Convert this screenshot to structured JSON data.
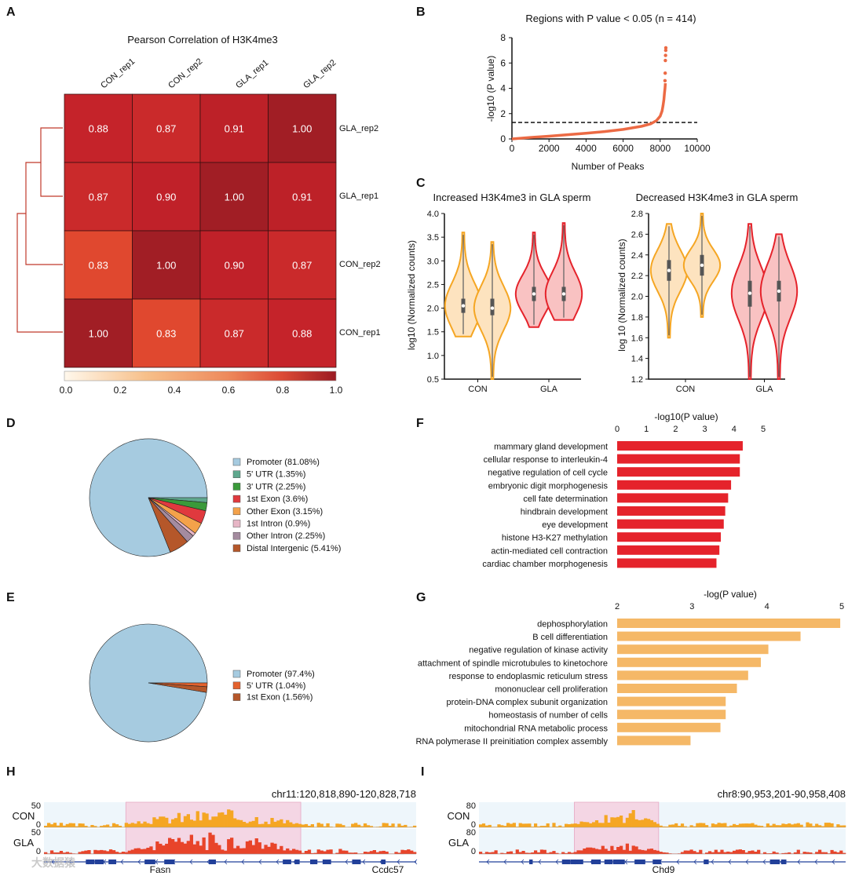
{
  "panel_labels": {
    "a": "A",
    "b": "B",
    "c": "C",
    "d": "D",
    "e": "E",
    "f": "F",
    "g": "G",
    "h": "H",
    "i": "I"
  },
  "watermark": "大数据猿",
  "chart_data": [
    {
      "id": "A",
      "type": "heatmap",
      "title": "Pearson Correlation of H3K4me3",
      "columns": [
        "CON_rep1",
        "CON_rep2",
        "GLA_rep1",
        "GLA_rep2"
      ],
      "rows": [
        "GLA_rep2",
        "GLA_rep1",
        "CON_rep2",
        "CON_rep1"
      ],
      "values": [
        [
          0.88,
          0.87,
          0.91,
          1.0
        ],
        [
          0.87,
          0.9,
          1.0,
          0.91
        ],
        [
          0.83,
          1.0,
          0.9,
          0.87
        ],
        [
          1.0,
          0.83,
          0.87,
          0.88
        ]
      ],
      "value_labels": [
        [
          "0.88",
          "0.87",
          "0.91",
          "1.00"
        ],
        [
          "0.87",
          "0.90",
          "1.00",
          "0.91"
        ],
        [
          "0.83",
          "1.00",
          "0.90",
          "0.87"
        ],
        [
          "1.00",
          "0.83",
          "0.87",
          "0.88"
        ]
      ],
      "colorbar_ticks": [
        "0.0",
        "0.2",
        "0.4",
        "0.6",
        "0.8",
        "1.0"
      ],
      "colorbar_range": [
        0,
        1
      ],
      "colors": [
        "#fff8ec",
        "#f6b77d",
        "#ec7a52",
        "#d9352a",
        "#9b1a22"
      ],
      "dendrogram": "left"
    },
    {
      "id": "B",
      "type": "line",
      "title": "Regions with P value < 0.05  (n = 414)",
      "xlabel": "Number of Peaks",
      "ylabel": "-log10 (P value)",
      "xlim": [
        0,
        10000
      ],
      "ylim": [
        0,
        8
      ],
      "xticks": [
        "0",
        "2000",
        "4000",
        "6000",
        "8000",
        "10000"
      ],
      "yticks": [
        "0",
        "2",
        "4",
        "6",
        "8"
      ],
      "threshold": 1.3,
      "curve_x": [
        0,
        1000,
        2000,
        3000,
        4000,
        5000,
        6000,
        7000,
        7500,
        7800,
        8000,
        8100,
        8150,
        8200,
        8230,
        8260,
        8280
      ],
      "curve_y": [
        0,
        0.12,
        0.22,
        0.33,
        0.45,
        0.58,
        0.75,
        1.0,
        1.2,
        1.45,
        1.8,
        2.2,
        2.6,
        3.1,
        3.6,
        4.0,
        4.4
      ],
      "outlier_x": [
        8260,
        8270,
        8280,
        8290,
        8300,
        8305
      ],
      "outlier_y": [
        4.6,
        5.2,
        6.2,
        6.6,
        7.0,
        7.2
      ],
      "color": "#ec6a44"
    },
    {
      "id": "C1",
      "type": "violin",
      "title": "Increased H3K4me3 in GLA sperm",
      "ylabel": "log10 (Normalized counts)",
      "categories": [
        "CON",
        "GLA"
      ],
      "ylim": [
        0.5,
        4.0
      ],
      "yticks": [
        "0.5",
        "1.0",
        "1.5",
        "2.0",
        "2.5",
        "3.0",
        "3.5",
        "4.0"
      ],
      "violins": [
        {
          "group": "CON",
          "min": 1.4,
          "q1": 1.9,
          "median": 2.05,
          "q3": 2.2,
          "max": 3.6,
          "color": "#f5a623",
          "fill": "#fde3bf"
        },
        {
          "group": "CON",
          "min": 0.5,
          "q1": 1.85,
          "median": 2.0,
          "q3": 2.2,
          "max": 3.4,
          "color": "#f5a623",
          "fill": "#fde3bf"
        },
        {
          "group": "GLA",
          "min": 1.6,
          "q1": 2.15,
          "median": 2.3,
          "q3": 2.45,
          "max": 3.6,
          "color": "#e5232b",
          "fill": "#f9c2c2"
        },
        {
          "group": "GLA",
          "min": 1.75,
          "q1": 2.15,
          "median": 2.3,
          "q3": 2.45,
          "max": 3.8,
          "color": "#e5232b",
          "fill": "#f9c2c2"
        }
      ]
    },
    {
      "id": "C2",
      "type": "violin",
      "title": "Decreased H3K4me3 in GLA sperm",
      "ylabel": "log 10 (Normalized counts)",
      "categories": [
        "CON",
        "GLA"
      ],
      "ylim": [
        1.2,
        2.8
      ],
      "yticks": [
        "1.2",
        "1.4",
        "1.6",
        "1.8",
        "2.0",
        "2.2",
        "2.4",
        "2.6",
        "2.8"
      ],
      "violins": [
        {
          "group": "CON",
          "min": 1.6,
          "q1": 2.15,
          "median": 2.25,
          "q3": 2.35,
          "max": 2.7,
          "color": "#f5a623",
          "fill": "#fde3bf"
        },
        {
          "group": "CON",
          "min": 1.8,
          "q1": 2.2,
          "median": 2.3,
          "q3": 2.4,
          "max": 2.8,
          "color": "#f5a623",
          "fill": "#fde3bf"
        },
        {
          "group": "GLA",
          "min": 1.2,
          "q1": 1.9,
          "median": 2.03,
          "q3": 2.15,
          "max": 2.7,
          "color": "#e5232b",
          "fill": "#f9c2c2"
        },
        {
          "group": "GLA",
          "min": 1.2,
          "q1": 1.95,
          "median": 2.05,
          "q3": 2.15,
          "max": 2.6,
          "color": "#e5232b",
          "fill": "#f9c2c2"
        }
      ]
    },
    {
      "id": "D",
      "type": "pie",
      "labels": [
        "Promoter (81.08%)",
        "5' UTR (1.35%)",
        "3' UTR (2.25%)",
        "1st Exon (3.6%)",
        "Other Exon (3.15%)",
        "1st Intron (0.9%)",
        "Other Intron (2.25%)",
        "Distal Intergenic (5.41%)"
      ],
      "values": [
        81.08,
        1.35,
        2.25,
        3.6,
        3.15,
        0.9,
        2.25,
        5.41
      ],
      "colors": [
        "#a6cbe0",
        "#5fa88e",
        "#3a9a3a",
        "#e0393e",
        "#f4a24a",
        "#e7b6c6",
        "#a48b9f",
        "#b5572a"
      ]
    },
    {
      "id": "E",
      "type": "pie",
      "labels": [
        "Promoter (97.4%)",
        "5' UTR (1.04%)",
        "1st Exon (1.56%)"
      ],
      "values": [
        97.4,
        1.04,
        1.56
      ],
      "colors": [
        "#a6cbe0",
        "#e3622e",
        "#b5572a"
      ]
    },
    {
      "id": "F",
      "type": "bar",
      "orientation": "horizontal",
      "xlabel": "-log10(P value)",
      "xlim": [
        0,
        5
      ],
      "xticks": [
        "0",
        "1",
        "2",
        "3",
        "4",
        "5"
      ],
      "categories": [
        "mammary gland development",
        "cellular response to interleukin-4",
        "negative regulation of cell cycle",
        "embryonic digit morphogenesis",
        "cell fate determination",
        "hindbrain development",
        "eye development",
        "histone H3-K27 methylation",
        "actin-mediated cell contraction",
        "cardiac chamber morphogenesis"
      ],
      "values": [
        4.3,
        4.2,
        4.2,
        3.9,
        3.8,
        3.7,
        3.65,
        3.55,
        3.5,
        3.4
      ],
      "color": "#e5232b"
    },
    {
      "id": "G",
      "type": "bar",
      "orientation": "horizontal",
      "xlabel": "-log(P value)",
      "xlim": [
        2,
        5
      ],
      "xticks": [
        "2",
        "3",
        "4",
        "5"
      ],
      "categories": [
        "dephosphorylation",
        "B cell differentiation",
        "negative regulation of kinase activity",
        "attachment of spindle microtubules to kinetochore",
        "response to endoplasmic reticulum stress",
        "mononuclear cell proliferation",
        "protein-DNA complex subunit organization",
        "homeostasis of number of cells",
        "mitochondrial RNA metabolic process",
        "RNA polymerase II preinitiation complex assembly"
      ],
      "values": [
        4.98,
        4.45,
        4.02,
        3.92,
        3.75,
        3.6,
        3.45,
        3.45,
        3.38,
        2.98
      ],
      "color": "#f5b867"
    },
    {
      "id": "H",
      "type": "area",
      "locus": "chr11:120,818,890-120,828,718",
      "tracks": [
        {
          "name": "CON",
          "ymax_label": "50",
          "ymin_label": "0",
          "color": "#f5a623",
          "seed": 3,
          "level": 0.45
        },
        {
          "name": "GLA",
          "ymax_label": "50",
          "ymin_label": "0",
          "color": "#e8442a",
          "seed": 11,
          "level": 0.55
        }
      ],
      "highlight_range": [
        0.22,
        0.69
      ],
      "genes": [
        "Fasn",
        "Ccdc57"
      ]
    },
    {
      "id": "I",
      "type": "area",
      "locus": "chr8:90,953,201-90,958,408",
      "tracks": [
        {
          "name": "CON",
          "ymax_label": "80",
          "ymin_label": "0",
          "color": "#f5a623",
          "seed": 5,
          "level": 0.5
        },
        {
          "name": "GLA",
          "ymax_label": "80",
          "ymin_label": "0",
          "color": "#e8442a",
          "seed": 7,
          "level": 0.25
        }
      ],
      "highlight_range": [
        0.26,
        0.49
      ],
      "genes": [
        "Chd9"
      ]
    }
  ]
}
